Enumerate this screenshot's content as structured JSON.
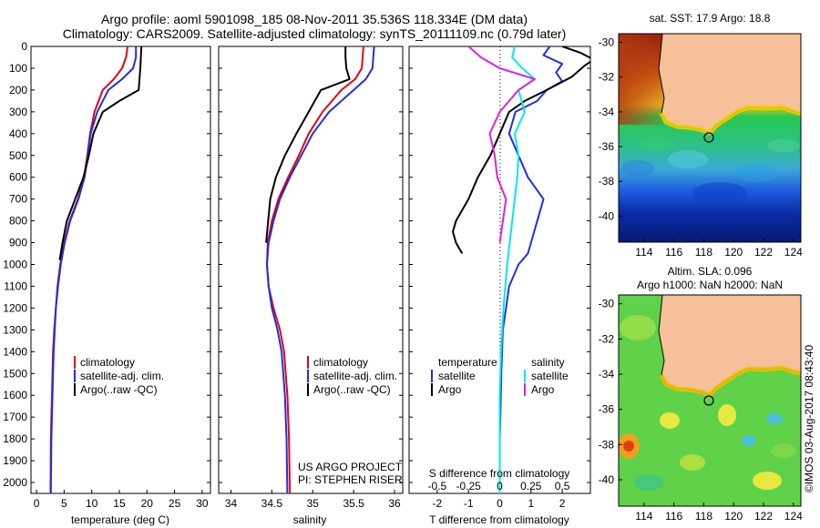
{
  "header": {
    "line1": "Argo profile: aoml 5901098_185 08-Nov-2011 35.536S 118.334E (DM data)",
    "line2": "Climatology: CARS2009. Satellite-adjusted climatology: synTS_20111109.nc (0.79d later)"
  },
  "colors": {
    "climatology": "#e8000b",
    "satellite": "#1f2ee6",
    "argo": "#000000",
    "salinity_satellite": "#00e8f0",
    "salinity_argo": "#e020e0",
    "land": "#f6c09a"
  },
  "depth_ticks": [
    "0",
    "100",
    "200",
    "300",
    "400",
    "500",
    "600",
    "700",
    "800",
    "900",
    "1000",
    "1100",
    "1200",
    "1300",
    "1400",
    "1500",
    "1600",
    "1700",
    "1800",
    "1900",
    "2000"
  ],
  "temperature_panel": {
    "xlabel": "temperature (deg C)",
    "x_ticks": [
      "0",
      "5",
      "10",
      "15",
      "20",
      "25",
      "30"
    ],
    "legend": [
      "climatology",
      "satellite-adj. clim.",
      "Argo(..raw -QC)"
    ]
  },
  "salinity_panel": {
    "xlabel": "salinity",
    "x_ticks": [
      "34",
      "34.5",
      "35",
      "35.5",
      "36"
    ],
    "legend": [
      "climatology",
      "satellite-adj. clim.",
      "Argo(..raw -QC)"
    ],
    "credit1": "US ARGO PROJECT",
    "credit2": "PI: STEPHEN RISER"
  },
  "difference_panel": {
    "xlabel": "T difference from climatology",
    "x_ticks": [
      "-2",
      "-1",
      "0",
      "1",
      "2"
    ],
    "top_label": "S difference from climatology",
    "top_ticks": [
      "-0.5",
      "-0.25",
      "0",
      "0.25",
      "0.5"
    ],
    "legend_temperature_title": "temperature",
    "legend_salinity_title": "salinity",
    "legend_temperature": [
      "satellite",
      "Argo"
    ],
    "legend_salinity": [
      "satellite",
      "Argo"
    ]
  },
  "sst_map": {
    "title": "sat. SST: 17.9 Argo: 18.8",
    "lat_ticks": [
      "-30",
      "-32",
      "-34",
      "-36",
      "-38",
      "-40"
    ],
    "lon_ticks": [
      "114",
      "116",
      "118",
      "120",
      "122",
      "124"
    ]
  },
  "sla_map": {
    "title1": "Altim. SLA: 0.096",
    "title2": "Argo h1000: NaN h2000: NaN",
    "lat_ticks": [
      "-30",
      "-32",
      "-34",
      "-36",
      "-38",
      "-40"
    ],
    "lon_ticks": [
      "114",
      "116",
      "118",
      "120",
      "122",
      "124"
    ]
  },
  "watermark": "©IMOS 03-Aug-2017 08:43:40",
  "chart_data": [
    {
      "type": "line",
      "xlabel": "temperature (deg C)",
      "ylabel": "",
      "xlim": [
        -1,
        31.5
      ],
      "ylim": [
        2050,
        0
      ],
      "series": [
        {
          "name": "climatology",
          "x": [
            16.5,
            16.2,
            15.5,
            14.0,
            12.0,
            10.5,
            9.7,
            9.2,
            8.6,
            7.5,
            6.0,
            5.0,
            4.3,
            3.8,
            3.5,
            3.2,
            3.0,
            2.9,
            2.8,
            2.7,
            2.6,
            2.55
          ],
          "y": [
            0,
            50,
            100,
            150,
            200,
            300,
            400,
            500,
            600,
            700,
            800,
            900,
            1000,
            1100,
            1200,
            1300,
            1400,
            1500,
            1600,
            1700,
            1800,
            2050
          ]
        },
        {
          "name": "satellite-adj. clim.",
          "x": [
            18.0,
            18.0,
            17.5,
            15.5,
            13.0,
            11.0,
            9.8,
            9.3,
            8.7,
            7.6,
            6.1,
            5.1,
            4.4,
            3.9,
            3.5,
            3.3,
            3.1,
            3.0,
            2.9,
            2.8,
            2.7,
            2.6
          ],
          "y": [
            0,
            50,
            100,
            150,
            200,
            300,
            400,
            500,
            600,
            700,
            800,
            900,
            1000,
            1100,
            1200,
            1300,
            1400,
            1500,
            1600,
            1700,
            1800,
            2050
          ]
        },
        {
          "name": "Argo(..raw -QC)",
          "x": [
            19.0,
            18.9,
            18.8,
            18.5,
            15.0,
            12.0,
            10.3,
            9.5,
            8.5,
            7.0,
            5.5,
            4.7,
            4.2
          ],
          "y": [
            0,
            50,
            100,
            200,
            250,
            300,
            400,
            500,
            600,
            700,
            800,
            900,
            980
          ]
        }
      ]
    },
    {
      "type": "line",
      "xlabel": "salinity",
      "ylabel": "",
      "xlim": [
        33.85,
        36.1
      ],
      "ylim": [
        2050,
        0
      ],
      "series": [
        {
          "name": "climatology",
          "x": [
            35.62,
            35.6,
            35.52,
            35.35,
            35.12,
            34.95,
            34.83,
            34.7,
            34.58,
            34.5,
            34.45,
            34.44,
            34.46,
            34.52,
            34.6,
            34.65,
            34.67,
            34.69,
            34.7,
            34.71,
            34.72
          ],
          "y": [
            0,
            100,
            150,
            200,
            300,
            400,
            500,
            600,
            700,
            800,
            900,
            1000,
            1100,
            1200,
            1300,
            1400,
            1500,
            1600,
            1700,
            1800,
            2050
          ]
        },
        {
          "name": "satellite-adj. clim.",
          "x": [
            35.75,
            35.73,
            35.65,
            35.5,
            35.2,
            35.0,
            34.86,
            34.72,
            34.6,
            34.52,
            34.46,
            34.44,
            34.46,
            34.5,
            34.57,
            34.62,
            34.64,
            34.66,
            34.67,
            34.68,
            34.69
          ],
          "y": [
            0,
            100,
            150,
            200,
            300,
            400,
            500,
            600,
            700,
            800,
            900,
            1000,
            1100,
            1200,
            1300,
            1400,
            1500,
            1600,
            1700,
            1800,
            2050
          ]
        },
        {
          "name": "Argo(..raw -QC)",
          "x": [
            35.4,
            35.4,
            35.41,
            35.45,
            35.1,
            34.95,
            34.8,
            34.66,
            34.55,
            34.48,
            34.43
          ],
          "y": [
            0,
            50,
            100,
            150,
            200,
            300,
            400,
            500,
            600,
            700,
            900
          ]
        }
      ]
    },
    {
      "type": "line",
      "xlabel": "T difference from climatology",
      "ylabel": "",
      "xlim": [
        -2.9,
        2.9
      ],
      "ylim": [
        2050,
        0
      ],
      "series": [
        {
          "name": "temperature satellite",
          "x": [
            1.6,
            1.4,
            2.0,
            1.8,
            2.0,
            1.5,
            1.2,
            0.5,
            0.3,
            0.6,
            0.9,
            1.4,
            1.2,
            1.0,
            0.9,
            0.6,
            0.3,
            0.2,
            0.1,
            0.05,
            0.02,
            0.0,
            0.0,
            0.0
          ],
          "y": [
            0,
            40,
            80,
            120,
            160,
            200,
            250,
            300,
            400,
            500,
            600,
            700,
            800,
            900,
            950,
            1000,
            1100,
            1200,
            1300,
            1500,
            1700,
            1800,
            1900,
            2050
          ]
        },
        {
          "name": "temperature Argo",
          "x": [
            2.0,
            2.6,
            3.0,
            2.7,
            2.3,
            1.5,
            0.8,
            0.3,
            -0.3,
            -0.7,
            -1.0,
            -1.4,
            -1.5,
            -1.4,
            -1.2
          ],
          "y": [
            0,
            30,
            60,
            90,
            140,
            200,
            250,
            300,
            500,
            600,
            700,
            800,
            850,
            900,
            950
          ]
        },
        {
          "name": "salinity satellite",
          "x": [
            0.12,
            0.1,
            0.18,
            0.28,
            0.15,
            0.2,
            0.12,
            0.15,
            0.14,
            0.1,
            0.06,
            0.03,
            0.01,
            0.0,
            0.0,
            0.0
          ],
          "y": [
            0,
            50,
            100,
            150,
            200,
            300,
            400,
            500,
            600,
            800,
            1000,
            1200,
            1400,
            1600,
            1800,
            2050
          ]
        },
        {
          "name": "salinity Argo",
          "x": [
            -0.25,
            -0.15,
            0.0,
            0.28,
            0.15,
            0.0,
            -0.08,
            -0.04,
            -0.02,
            0.05,
            0.0
          ],
          "y": [
            0,
            50,
            100,
            150,
            200,
            300,
            400,
            500,
            600,
            700,
            900
          ]
        }
      ]
    }
  ]
}
